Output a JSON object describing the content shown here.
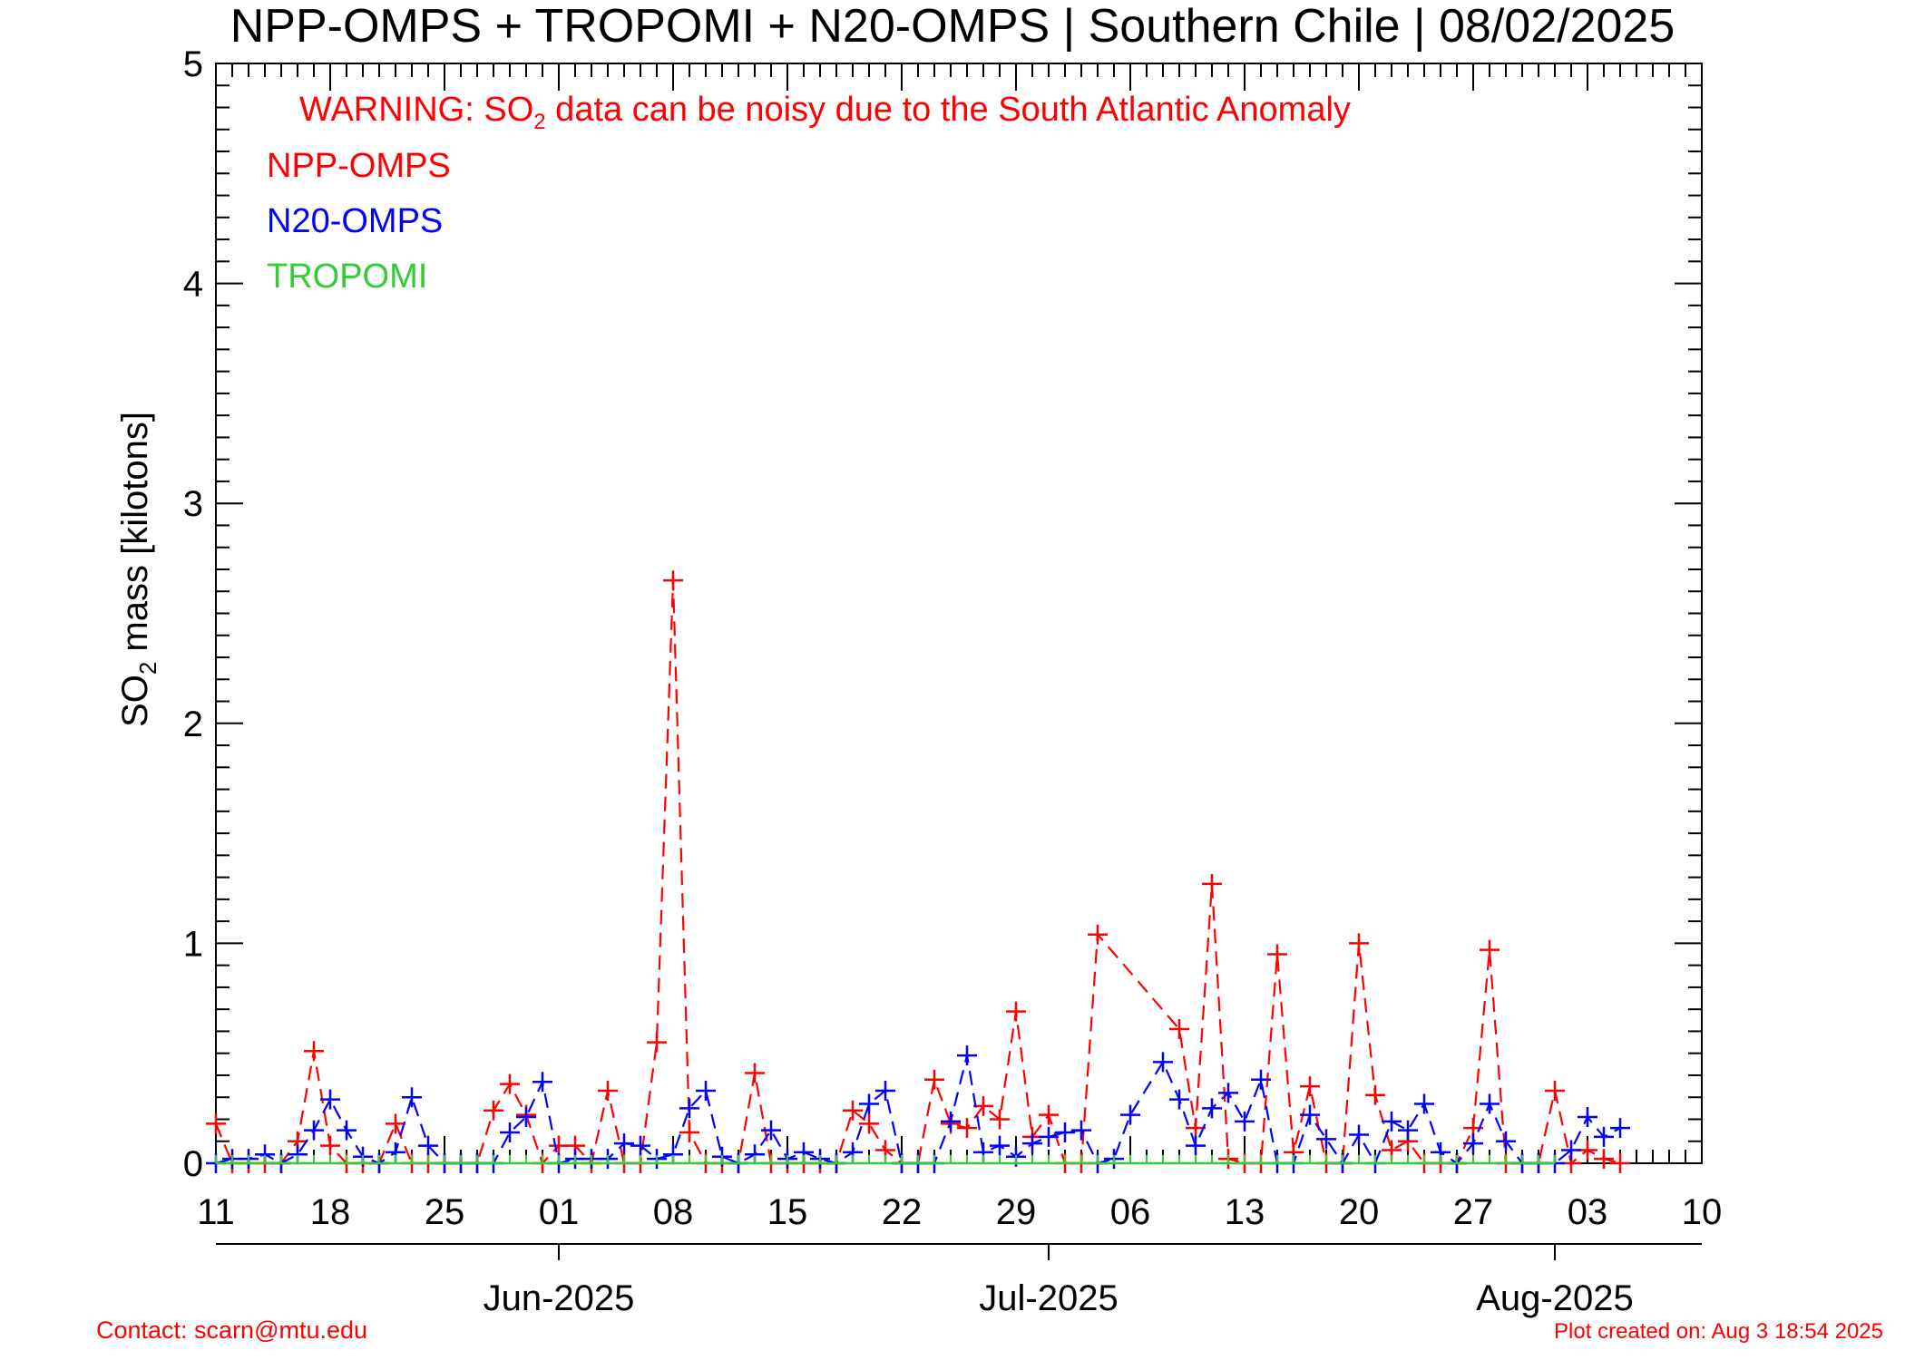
{
  "chart_data": {
    "type": "line",
    "title": "NPP-OMPS + TROPOMI + N20-OMPS | Southern Chile | 08/02/2025",
    "warning": {
      "prefix": "WARNING: SO",
      "sub": "2",
      "suffix": " data can be noisy due to the South Atlantic Anomaly",
      "color": "#ff0000"
    },
    "ylabel": {
      "prefix": "SO",
      "sub": "2",
      "suffix": " mass [kilotons]"
    },
    "ylim": [
      0,
      5
    ],
    "yticks": [
      {
        "v": 0,
        "label": "0"
      },
      {
        "v": 1,
        "label": "1"
      },
      {
        "v": 2,
        "label": "2"
      },
      {
        "v": 3,
        "label": "3"
      },
      {
        "v": 4,
        "label": "4"
      },
      {
        "v": 5,
        "label": "5"
      }
    ],
    "x_range": [
      "2025-05-11",
      "2025-08-10"
    ],
    "xticks": [
      {
        "date": "2025-05-11",
        "label": "11"
      },
      {
        "date": "2025-05-18",
        "label": "18"
      },
      {
        "date": "2025-05-25",
        "label": "25"
      },
      {
        "date": "2025-06-01",
        "label": "01"
      },
      {
        "date": "2025-06-08",
        "label": "08"
      },
      {
        "date": "2025-06-15",
        "label": "15"
      },
      {
        "date": "2025-06-22",
        "label": "22"
      },
      {
        "date": "2025-06-29",
        "label": "29"
      },
      {
        "date": "2025-07-06",
        "label": "06"
      },
      {
        "date": "2025-07-13",
        "label": "13"
      },
      {
        "date": "2025-07-20",
        "label": "20"
      },
      {
        "date": "2025-07-27",
        "label": "27"
      },
      {
        "date": "2025-08-03",
        "label": "03"
      },
      {
        "date": "2025-08-10",
        "label": "10"
      }
    ],
    "month_ticks": [
      {
        "date": "2025-06-01",
        "label": "Jun-2025"
      },
      {
        "date": "2025-07-01",
        "label": "Jul-2025"
      },
      {
        "date": "2025-08-01",
        "label": "Aug-2025"
      }
    ],
    "series": [
      {
        "name": "NPP-OMPS",
        "color": "#ff0000",
        "points": [
          [
            "2025-05-11",
            0.18
          ],
          [
            "2025-05-12",
            0.0
          ],
          [
            "2025-05-13",
            0.0
          ],
          [
            "2025-05-14",
            0.0
          ],
          [
            "2025-05-15",
            0.0
          ],
          [
            "2025-05-16",
            0.1
          ],
          [
            "2025-05-17",
            0.51
          ],
          [
            "2025-05-18",
            0.08
          ],
          [
            "2025-05-19",
            0.0
          ],
          [
            "2025-05-20",
            0.0
          ],
          [
            "2025-05-21",
            0.0
          ],
          [
            "2025-05-22",
            0.18
          ],
          [
            "2025-05-23",
            0.0
          ],
          [
            "2025-05-24",
            0.0
          ],
          [
            "2025-05-25",
            0.0
          ],
          [
            "2025-05-26",
            0.0
          ],
          [
            "2025-05-27",
            0.0
          ],
          [
            "2025-05-28",
            0.24
          ],
          [
            "2025-05-29",
            0.36
          ],
          [
            "2025-05-30",
            0.22
          ],
          [
            "2025-05-31",
            0.0
          ],
          [
            "2025-06-01",
            0.08
          ],
          [
            "2025-06-02",
            0.08
          ],
          [
            "2025-06-03",
            0.0
          ],
          [
            "2025-06-04",
            0.33
          ],
          [
            "2025-06-05",
            0.0
          ],
          [
            "2025-06-06",
            0.0
          ],
          [
            "2025-06-07",
            0.55
          ],
          [
            "2025-06-08",
            2.65
          ],
          [
            "2025-06-09",
            0.14
          ],
          [
            "2025-06-10",
            0.0
          ],
          [
            "2025-06-11",
            0.0
          ],
          [
            "2025-06-12",
            0.0
          ],
          [
            "2025-06-13",
            0.41
          ],
          [
            "2025-06-14",
            0.0
          ],
          [
            "2025-06-15",
            0.0
          ],
          [
            "2025-06-16",
            0.0
          ],
          [
            "2025-06-17",
            0.0
          ],
          [
            "2025-06-18",
            0.0
          ],
          [
            "2025-06-19",
            0.24
          ],
          [
            "2025-06-20",
            0.18
          ],
          [
            "2025-06-21",
            0.06
          ],
          [
            "2025-06-22",
            0.0
          ],
          [
            "2025-06-23",
            0.0
          ],
          [
            "2025-06-24",
            0.38
          ],
          [
            "2025-06-25",
            0.18
          ],
          [
            "2025-06-26",
            0.16
          ],
          [
            "2025-06-27",
            0.26
          ],
          [
            "2025-06-28",
            0.2
          ],
          [
            "2025-06-29",
            0.69
          ],
          [
            "2025-06-30",
            0.12
          ],
          [
            "2025-07-01",
            0.22
          ],
          [
            "2025-07-02",
            0.0
          ],
          [
            "2025-07-03",
            0.0
          ],
          [
            "2025-07-04",
            1.04
          ],
          [
            "2025-07-09",
            0.61
          ],
          [
            "2025-07-10",
            0.16
          ],
          [
            "2025-07-11",
            1.27
          ],
          [
            "2025-07-12",
            0.02
          ],
          [
            "2025-07-13",
            0.0
          ],
          [
            "2025-07-14",
            0.0
          ],
          [
            "2025-07-15",
            0.95
          ],
          [
            "2025-07-16",
            0.05
          ],
          [
            "2025-07-17",
            0.35
          ],
          [
            "2025-07-18",
            0.0
          ],
          [
            "2025-07-19",
            0.0
          ],
          [
            "2025-07-20",
            1.0
          ],
          [
            "2025-07-21",
            0.31
          ],
          [
            "2025-07-22",
            0.06
          ],
          [
            "2025-07-23",
            0.1
          ],
          [
            "2025-07-24",
            0.0
          ],
          [
            "2025-07-25",
            0.0
          ],
          [
            "2025-07-26",
            0.0
          ],
          [
            "2025-07-27",
            0.16
          ],
          [
            "2025-07-28",
            0.97
          ],
          [
            "2025-07-29",
            0.0
          ],
          [
            "2025-07-30",
            0.0
          ],
          [
            "2025-07-31",
            0.0
          ],
          [
            "2025-08-01",
            0.33
          ],
          [
            "2025-08-02",
            0.0
          ],
          [
            "2025-08-03",
            0.06
          ],
          [
            "2025-08-04",
            0.02
          ],
          [
            "2025-08-05",
            0.0
          ]
        ]
      },
      {
        "name": "N20-OMPS",
        "color": "#0000ff",
        "points": [
          [
            "2025-05-11",
            0.0
          ],
          [
            "2025-05-12",
            0.02
          ],
          [
            "2025-05-13",
            0.02
          ],
          [
            "2025-05-14",
            0.04
          ],
          [
            "2025-05-15",
            0.0
          ],
          [
            "2025-05-16",
            0.04
          ],
          [
            "2025-05-17",
            0.15
          ],
          [
            "2025-05-18",
            0.29
          ],
          [
            "2025-05-19",
            0.15
          ],
          [
            "2025-05-20",
            0.03
          ],
          [
            "2025-05-21",
            0.0
          ],
          [
            "2025-05-22",
            0.05
          ],
          [
            "2025-05-23",
            0.3
          ],
          [
            "2025-05-24",
            0.08
          ],
          [
            "2025-05-25",
            0.0
          ],
          [
            "2025-05-26",
            0.0
          ],
          [
            "2025-05-27",
            0.0
          ],
          [
            "2025-05-28",
            0.0
          ],
          [
            "2025-05-29",
            0.14
          ],
          [
            "2025-05-30",
            0.21
          ],
          [
            "2025-05-31",
            0.37
          ],
          [
            "2025-06-01",
            0.0
          ],
          [
            "2025-06-02",
            0.02
          ],
          [
            "2025-06-03",
            0.02
          ],
          [
            "2025-06-04",
            0.02
          ],
          [
            "2025-06-05",
            0.09
          ],
          [
            "2025-06-06",
            0.08
          ],
          [
            "2025-06-07",
            0.02
          ],
          [
            "2025-06-08",
            0.04
          ],
          [
            "2025-06-09",
            0.25
          ],
          [
            "2025-06-10",
            0.33
          ],
          [
            "2025-06-11",
            0.03
          ],
          [
            "2025-06-12",
            0.0
          ],
          [
            "2025-06-13",
            0.04
          ],
          [
            "2025-06-14",
            0.15
          ],
          [
            "2025-06-15",
            0.02
          ],
          [
            "2025-06-16",
            0.05
          ],
          [
            "2025-06-17",
            0.02
          ],
          [
            "2025-06-18",
            0.0
          ],
          [
            "2025-06-19",
            0.05
          ],
          [
            "2025-06-20",
            0.27
          ],
          [
            "2025-06-21",
            0.33
          ],
          [
            "2025-06-22",
            0.0
          ],
          [
            "2025-06-23",
            0.0
          ],
          [
            "2025-06-24",
            0.0
          ],
          [
            "2025-06-25",
            0.19
          ],
          [
            "2025-06-26",
            0.49
          ],
          [
            "2025-06-27",
            0.05
          ],
          [
            "2025-06-28",
            0.08
          ],
          [
            "2025-06-29",
            0.03
          ],
          [
            "2025-06-30",
            0.09
          ],
          [
            "2025-07-01",
            0.12
          ],
          [
            "2025-07-02",
            0.14
          ],
          [
            "2025-07-03",
            0.15
          ],
          [
            "2025-07-04",
            0.0
          ],
          [
            "2025-07-05",
            0.02
          ],
          [
            "2025-07-06",
            0.22
          ],
          [
            "2025-07-08",
            0.46
          ],
          [
            "2025-07-09",
            0.29
          ],
          [
            "2025-07-10",
            0.08
          ],
          [
            "2025-07-11",
            0.25
          ],
          [
            "2025-07-12",
            0.32
          ],
          [
            "2025-07-13",
            0.19
          ],
          [
            "2025-07-14",
            0.38
          ],
          [
            "2025-07-15",
            0.0
          ],
          [
            "2025-07-16",
            0.0
          ],
          [
            "2025-07-17",
            0.22
          ],
          [
            "2025-07-18",
            0.11
          ],
          [
            "2025-07-19",
            0.0
          ],
          [
            "2025-07-20",
            0.13
          ],
          [
            "2025-07-21",
            0.0
          ],
          [
            "2025-07-22",
            0.19
          ],
          [
            "2025-07-23",
            0.15
          ],
          [
            "2025-07-24",
            0.27
          ],
          [
            "2025-07-25",
            0.05
          ],
          [
            "2025-07-26",
            0.0
          ],
          [
            "2025-07-27",
            0.09
          ],
          [
            "2025-07-28",
            0.27
          ],
          [
            "2025-07-29",
            0.1
          ],
          [
            "2025-07-30",
            0.0
          ],
          [
            "2025-07-31",
            0.0
          ],
          [
            "2025-08-01",
            0.0
          ],
          [
            "2025-08-02",
            0.06
          ],
          [
            "2025-08-03",
            0.21
          ],
          [
            "2025-08-04",
            0.12
          ],
          [
            "2025-08-05",
            0.16
          ]
        ]
      },
      {
        "name": "TROPOMI",
        "color": "#33cc33",
        "start": "2025-05-11",
        "end": "2025-08-01",
        "constant_value": 0
      }
    ],
    "legend": {
      "placement": "top-left"
    },
    "grid": false
  },
  "footer": {
    "contact": "Contact: scarn@mtu.edu",
    "created": "Plot created on: Aug  3 18:54 2025"
  }
}
